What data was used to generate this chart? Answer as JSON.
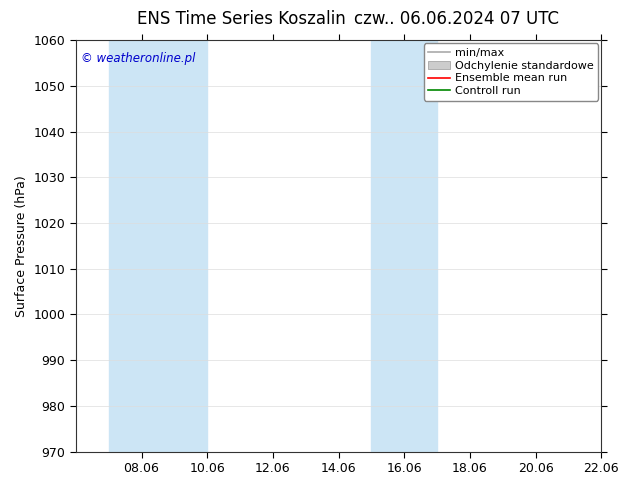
{
  "title_left": "ENS Time Series Koszalin",
  "title_right": "czw.. 06.06.2024 07 UTC",
  "ylabel": "Surface Pressure (hPa)",
  "ylim": [
    970,
    1060
  ],
  "yticks": [
    970,
    980,
    990,
    1000,
    1010,
    1020,
    1030,
    1040,
    1050,
    1060
  ],
  "xlim": [
    0,
    16
  ],
  "xtick_labels": [
    "08.06",
    "10.06",
    "12.06",
    "14.06",
    "16.06",
    "18.06",
    "20.06",
    "22.06"
  ],
  "xtick_positions": [
    2,
    4,
    6,
    8,
    10,
    12,
    14,
    16
  ],
  "shaded_bands": [
    {
      "x_start": 1,
      "x_end": 4,
      "color": "#cce5f5"
    },
    {
      "x_start": 9,
      "x_end": 11,
      "color": "#cce5f5"
    }
  ],
  "background_color": "#ffffff",
  "plot_bg_color": "#ffffff",
  "legend_items": [
    {
      "label": "min/max",
      "color": "#aaaaaa",
      "style": "line"
    },
    {
      "label": "Odchylenie standardowe",
      "color": "#cccccc",
      "style": "fill"
    },
    {
      "label": "Ensemble mean run",
      "color": "#ff0000",
      "style": "line"
    },
    {
      "label": "Controll run",
      "color": "#008800",
      "style": "line"
    }
  ],
  "watermark": "© weatheronline.pl",
  "watermark_color": "#0000cc",
  "title_fontsize": 12,
  "axis_fontsize": 9,
  "tick_fontsize": 9,
  "legend_fontsize": 8
}
